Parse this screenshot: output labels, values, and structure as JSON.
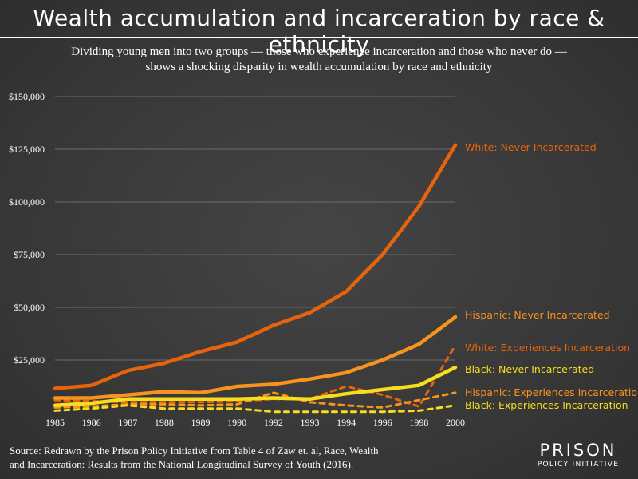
{
  "header": {
    "title": "Wealth accumulation and incarceration by race & ethnicity",
    "subtitle_line1": "Dividing young men into two groups — those who experience incarceration and those who never do —",
    "subtitle_line2": "shows a shocking disparity in wealth accumulation by race and ethnicity"
  },
  "footer": {
    "source_line1": "Source: Redrawn by the Prison Policy Initiative from Table 4 of Zaw et. al, Race, Wealth",
    "source_line2": "and Incarceration: Results from the National Longitudinal Survey of Youth (2016).",
    "logo_top": "PRISON",
    "logo_bottom": "POLICY INITIATIVE"
  },
  "chart_data": {
    "type": "line",
    "title": "Wealth accumulation and incarceration by race & ethnicity",
    "xlabel": "",
    "ylabel": "",
    "x": [
      "1985",
      "1986",
      "1987",
      "1988",
      "1989",
      "1990",
      "1992",
      "1993",
      "1994",
      "1996",
      "1998",
      "2000"
    ],
    "ylim": [
      0,
      150000
    ],
    "y_ticks": [
      25000,
      50000,
      75000,
      100000,
      125000,
      150000
    ],
    "y_tick_labels": [
      "$25,000",
      "$50,000",
      "$75,000",
      "$100,000",
      "$125,000",
      "$150,000"
    ],
    "grid": true,
    "legend": "direct-labels-right",
    "series": [
      {
        "name": "White: Never Incarcerated",
        "color": "#e8640c",
        "style": "solid",
        "values": [
          11500,
          13000,
          20000,
          23500,
          29000,
          33500,
          41500,
          47500,
          57500,
          75000,
          98000,
          127000
        ]
      },
      {
        "name": "Hispanic: Never Incarcerated",
        "color": "#f7931e",
        "style": "solid",
        "values": [
          7000,
          7000,
          8500,
          10000,
          9500,
          12500,
          13500,
          16000,
          19000,
          25000,
          32500,
          45500
        ]
      },
      {
        "name": "White: Experiences Incarceration",
        "color": "#e8640c",
        "style": "dashed",
        "values": [
          6000,
          5500,
          5000,
          5000,
          5000,
          5500,
          6500,
          6500,
          12500,
          8500,
          3000,
          32000
        ]
      },
      {
        "name": "Black: Never Incarcerated",
        "color": "#f6dd1d",
        "style": "solid",
        "values": [
          3500,
          4500,
          6500,
          6500,
          6500,
          6500,
          7000,
          6500,
          9000,
          11000,
          13000,
          21500
        ]
      },
      {
        "name": "Hispanic: Experiences Incarceration",
        "color": "#f7931e",
        "style": "dashed",
        "values": [
          2500,
          3000,
          4000,
          4000,
          3500,
          4000,
          9500,
          5000,
          3500,
          2500,
          6000,
          9500
        ]
      },
      {
        "name": "Black: Experiences Incarceration",
        "color": "#f6dd1d",
        "style": "dashed",
        "values": [
          1000,
          2000,
          3500,
          2000,
          2000,
          2000,
          500,
          500,
          500,
          500,
          1000,
          3500
        ]
      }
    ]
  }
}
